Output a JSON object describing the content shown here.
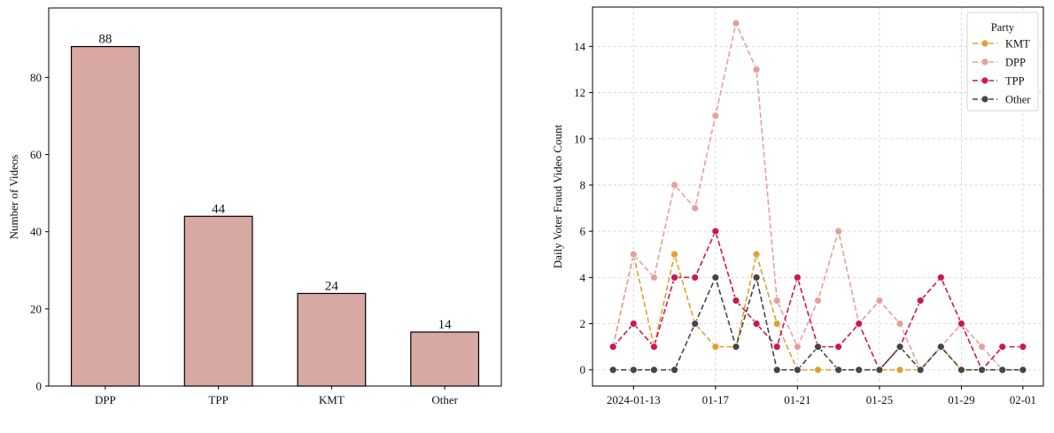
{
  "chart_data": [
    {
      "type": "bar",
      "categories": [
        "DPP",
        "TPP",
        "KMT",
        "Other"
      ],
      "values": [
        88,
        44,
        24,
        14
      ],
      "data_labels": [
        "88",
        "44",
        "24",
        "14"
      ],
      "title": "",
      "xlabel": "",
      "ylabel": "Number of Videos",
      "ylim": [
        0,
        98
      ],
      "yticks": [
        0,
        20,
        40,
        60,
        80
      ],
      "ytick_labels": [
        "0",
        "20",
        "40",
        "60",
        "80"
      ],
      "grid": false,
      "colors": {
        "bar_fill": "#d8a8a3",
        "bar_edge": "#000000"
      }
    },
    {
      "type": "line",
      "title": "",
      "xlabel": "",
      "ylabel": "Daily Voter Fraud Video Count",
      "x": [
        "2024-01-12",
        "2024-01-13",
        "2024-01-14",
        "2024-01-15",
        "2024-01-16",
        "2024-01-17",
        "2024-01-18",
        "2024-01-19",
        "2024-01-20",
        "2024-01-21",
        "2024-01-22",
        "2024-01-23",
        "2024-01-24",
        "2024-01-25",
        "2024-01-26",
        "2024-01-27",
        "2024-01-28",
        "2024-01-29",
        "2024-01-30",
        "2024-01-31",
        "2024-02-01"
      ],
      "xlim": [
        "2024-01-11",
        "2024-02-02"
      ],
      "xticks": [
        "2024-01-13",
        "2024-01-17",
        "2024-01-21",
        "2024-01-25",
        "2024-01-29",
        "2024-02-01"
      ],
      "xtick_labels": [
        "2024-01-13",
        "01-17",
        "01-21",
        "01-25",
        "01-29",
        "02-01"
      ],
      "ylim": [
        -0.7,
        15.7
      ],
      "yticks": [
        0,
        2,
        4,
        6,
        8,
        10,
        12,
        14
      ],
      "ytick_labels": [
        "0",
        "2",
        "4",
        "6",
        "8",
        "10",
        "12",
        "14"
      ],
      "grid": true,
      "legend": {
        "title": "Party",
        "placement": "top-right"
      },
      "series": [
        {
          "name": "KMT",
          "color": "#e0a030",
          "values": [
            1,
            5,
            1,
            5,
            2,
            1,
            1,
            5,
            2,
            0,
            0,
            0,
            0,
            0,
            0,
            0,
            1,
            0,
            0,
            0,
            0
          ]
        },
        {
          "name": "DPP",
          "color": "#e3a19b",
          "values": [
            1,
            5,
            4,
            8,
            7,
            11,
            15,
            13,
            3,
            1,
            3,
            6,
            2,
            3,
            2,
            0,
            1,
            2,
            1,
            0,
            0
          ]
        },
        {
          "name": "TPP",
          "color": "#cc1850",
          "values": [
            1,
            2,
            1,
            4,
            4,
            6,
            3,
            2,
            1,
            4,
            1,
            1,
            2,
            0,
            1,
            3,
            4,
            2,
            0,
            1,
            1
          ]
        },
        {
          "name": "Other",
          "color": "#454545",
          "values": [
            0,
            0,
            0,
            0,
            2,
            4,
            1,
            4,
            0,
            0,
            1,
            0,
            0,
            0,
            1,
            0,
            1,
            0,
            0,
            0,
            0
          ]
        }
      ]
    }
  ]
}
